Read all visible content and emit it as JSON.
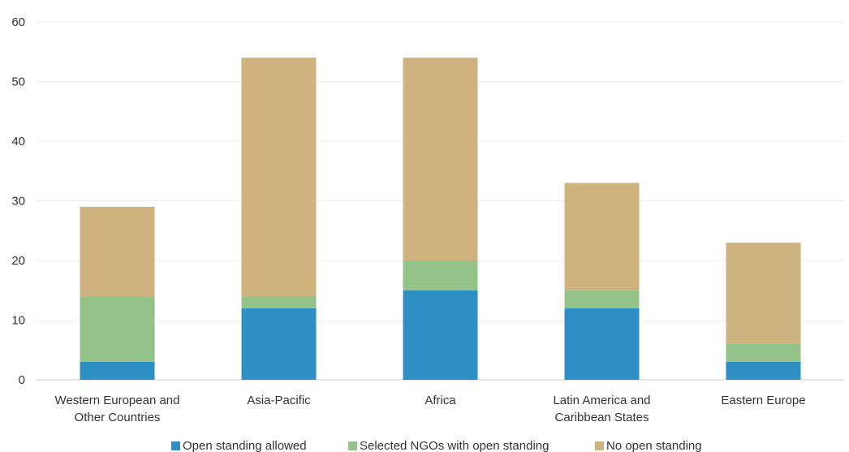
{
  "chart_data": {
    "type": "bar",
    "stacked": true,
    "categories": [
      [
        "Western European and",
        "Other Countries"
      ],
      [
        "Asia-Pacific"
      ],
      [
        "Africa"
      ],
      [
        "Latin America and",
        "Caribbean States"
      ],
      [
        "Eastern Europe"
      ]
    ],
    "series": [
      {
        "name": "Open standing allowed",
        "color": "#2e8fc4",
        "values": [
          3,
          12,
          15,
          12,
          3
        ]
      },
      {
        "name": "Selected NGOs with open standing",
        "color": "#93c388",
        "values": [
          11,
          2,
          5,
          3,
          3
        ]
      },
      {
        "name": "No open standing",
        "color": "#cfb37e",
        "values": [
          15,
          40,
          34,
          18,
          17
        ]
      }
    ],
    "ylim": [
      0,
      60
    ],
    "yticks": [
      "0",
      "10",
      "20",
      "30",
      "40",
      "50",
      "60"
    ],
    "grid": true,
    "legend_position": "bottom"
  }
}
